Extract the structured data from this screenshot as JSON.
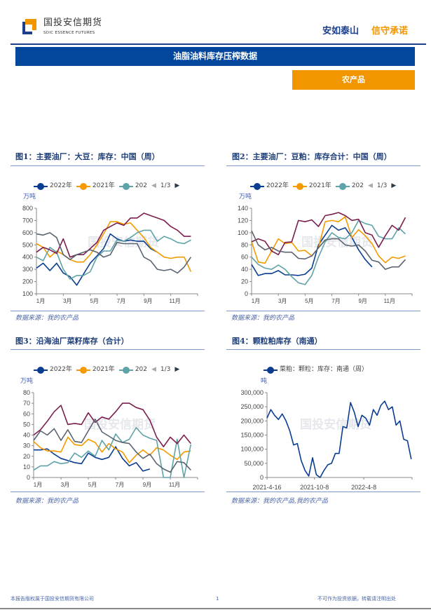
{
  "header": {
    "logo_cn": "国投安信期货",
    "logo_en": "SDIC ESSENCE FUTURES",
    "slogan_a": "安如泰山",
    "slogan_b": "信守承诺"
  },
  "section_title": "油脂油料库存压榨数据",
  "category": "农产品",
  "colors": {
    "navy": "#03479c",
    "orange": "#f29600",
    "s2022": "#0a3d91",
    "s2021": "#f59a00",
    "s2020": "#5fa3a8",
    "s4": "#7a1f4e",
    "s5": "#5a6470"
  },
  "watermark": "国投安信期货",
  "footer": {
    "left": "本报告版权属于国投安信期货有限公司",
    "page": "1",
    "right": "不可作为投资依据，转载请注明出处"
  },
  "charts": [
    {
      "title": "图1：主要油厂：大豆：库存：中国（周）",
      "unit": "万吨",
      "source": "数据来源：我的农产品",
      "legend": [
        "2022年",
        "2021年",
        "202"
      ],
      "pager": "1/3"
    },
    {
      "title": "图2：主要油厂：豆粕：库存合计：中国（周）",
      "unit": "万吨",
      "source": "数据来源：我的农产品",
      "legend": [
        "2022年",
        "2021年",
        "202"
      ],
      "pager": "1/3"
    },
    {
      "title": "图3：沿海油厂菜籽库存（合计）",
      "unit": "万吨",
      "source": "数据来源：我的农产品",
      "legend": [
        "2022年",
        "2021年",
        "202"
      ],
      "pager": "1/3"
    },
    {
      "title": "图4：颗粒粕库存（南通）",
      "unit": "吨",
      "source": "数据来源：我的农产品,我的农产品",
      "legend": [
        "菜粕：颗粒：库存：南通（周）"
      ]
    }
  ],
  "chart_data": [
    {
      "type": "line",
      "ylim": [
        100,
        800
      ],
      "yticks": [
        "100",
        "200",
        "300",
        "400",
        "500",
        "600",
        "700",
        "800"
      ],
      "xticks": [
        "1月",
        "3月",
        "5月",
        "7月",
        "9月",
        "11月"
      ],
      "x_unit": "month",
      "x_start": 1,
      "x_step": 0.5,
      "series": [
        {
          "name": "2022年",
          "color": "#0a3d91",
          "values": [
            310,
            350,
            290,
            350,
            270,
            240,
            170,
            260,
            350,
            410,
            470,
            590,
            550,
            530,
            540,
            530,
            530,
            470,
            440
          ]
        },
        {
          "name": "2021年",
          "color": "#f59a00",
          "values": [
            510,
            480,
            400,
            450,
            420,
            380,
            360,
            360,
            420,
            500,
            590,
            690,
            690,
            670,
            680,
            620,
            560,
            480,
            440,
            400,
            390,
            400,
            400,
            280
          ]
        },
        {
          "name": "202",
          "color": "#5fa3a8",
          "values": [
            400,
            370,
            480,
            440,
            300,
            220,
            250,
            250,
            280,
            400,
            450,
            450,
            540,
            530,
            560,
            600,
            620,
            620,
            530,
            570,
            550,
            520,
            510,
            540
          ]
        },
        {
          "color": "#7a1f4e",
          "values": [
            440,
            480,
            460,
            430,
            550,
            400,
            420,
            420,
            470,
            520,
            620,
            650,
            680,
            660,
            720,
            720,
            760,
            740,
            720,
            700,
            650,
            620,
            570,
            570
          ]
        },
        {
          "color": "#5a6470",
          "values": [
            590,
            580,
            600,
            560,
            420,
            380,
            420,
            440,
            460,
            440,
            400,
            420,
            520,
            510,
            510,
            510,
            400,
            370,
            300,
            290,
            300,
            270,
            320,
            400
          ]
        }
      ]
    },
    {
      "type": "line",
      "ylim": [
        0,
        140
      ],
      "yticks": [
        "0",
        "20",
        "40",
        "60",
        "80",
        "100",
        "120",
        "140"
      ],
      "xticks": [
        "1月",
        "3月",
        "5月",
        "7月",
        "9月",
        "11月"
      ],
      "x_unit": "month",
      "x_start": 1,
      "x_step": 0.5,
      "series": [
        {
          "name": "2022年",
          "color": "#0a3d91",
          "values": [
            48,
            30,
            33,
            33,
            38,
            31,
            31,
            30,
            32,
            42,
            80,
            96,
            112,
            104,
            108,
            92,
            72,
            56,
            44
          ]
        },
        {
          "name": "2021年",
          "color": "#f59a00",
          "values": [
            85,
            52,
            50,
            70,
            90,
            82,
            84,
            70,
            71,
            62,
            75,
            118,
            120,
            118,
            126,
            92,
            105,
            95,
            82,
            62,
            51,
            60,
            58,
            62
          ]
        },
        {
          "name": "202",
          "color": "#5fa3a8",
          "values": [
            60,
            48,
            42,
            40,
            47,
            40,
            28,
            18,
            15,
            30,
            60,
            85,
            100,
            92,
            90,
            100,
            120,
            115,
            112,
            94,
            90,
            90,
            108,
            98
          ]
        },
        {
          "color": "#7a1f4e",
          "values": [
            85,
            90,
            86,
            70,
            64,
            84,
            85,
            120,
            118,
            121,
            110,
            128,
            130,
            133,
            128,
            120,
            122,
            100,
            96,
            76,
            95,
            112,
            104,
            125
          ]
        },
        {
          "color": "#5a6470",
          "values": [
            103,
            80,
            72,
            76,
            70,
            68,
            68,
            58,
            57,
            62,
            75,
            88,
            90,
            90,
            80,
            78,
            80,
            70,
            55,
            52,
            40,
            44,
            44,
            56
          ]
        }
      ]
    },
    {
      "type": "line",
      "ylim": [
        0,
        80
      ],
      "yticks": [
        "0",
        "10",
        "20",
        "30",
        "40",
        "50",
        "60",
        "70",
        "80"
      ],
      "xticks": [
        "1月",
        "3月",
        "5月",
        "7月",
        "9月",
        "11月"
      ],
      "x_unit": "month",
      "x_start": 1,
      "x_step": 0.5,
      "series": [
        {
          "name": "2022年",
          "color": "#0a3d91",
          "values": [
            26,
            26,
            27,
            22,
            18,
            16,
            14,
            13,
            23,
            19,
            17,
            19,
            29,
            18,
            11,
            14,
            6,
            8
          ]
        },
        {
          "name": "2021年",
          "color": "#f59a00",
          "values": [
            34,
            28,
            25,
            25,
            24,
            38,
            31,
            30,
            36,
            33,
            24,
            32,
            27,
            24,
            14,
            21,
            26,
            21,
            28,
            26,
            21,
            17,
            24,
            25
          ]
        },
        {
          "name": "202",
          "color": "#5fa3a8",
          "values": [
            7,
            11,
            11,
            15,
            13,
            14,
            23,
            19,
            25,
            20,
            35,
            26,
            41,
            33,
            36,
            47,
            40,
            37,
            35,
            0,
            0,
            36,
            0,
            31
          ]
        },
        {
          "color": "#7a1f4e",
          "values": [
            40,
            45,
            53,
            62,
            68,
            50,
            51,
            50,
            61,
            52,
            57,
            55,
            62,
            70,
            70,
            66,
            64,
            54,
            38,
            29,
            38,
            32,
            40,
            32
          ]
        },
        {
          "color": "#5a6470",
          "values": [
            35,
            44,
            40,
            46,
            35,
            45,
            34,
            33,
            44,
            55,
            43,
            39,
            35,
            33,
            32,
            24,
            18,
            22,
            13,
            8,
            5,
            15,
            14,
            7
          ]
        }
      ]
    },
    {
      "type": "line",
      "ylim": [
        0,
        300000
      ],
      "yticks": [
        "0",
        "50,000",
        "100,000",
        "150,000",
        "200,000",
        "250,000",
        "300,000"
      ],
      "xticks": [
        "2021-4-16",
        "2021-10-8",
        "2022-4-8"
      ],
      "x": [
        "2021-04-16",
        "2021-04-30",
        "2021-05-14",
        "2021-05-28",
        "2021-06-11",
        "2021-06-25",
        "2021-07-09",
        "2021-07-23",
        "2021-08-06",
        "2021-08-20",
        "2021-09-03",
        "2021-09-17",
        "2021-10-01",
        "2021-10-15",
        "2021-10-29",
        "2021-11-12",
        "2021-11-26",
        "2021-12-10",
        "2021-12-24",
        "2022-01-07",
        "2022-01-21",
        "2022-02-04",
        "2022-02-18",
        "2022-03-04",
        "2022-03-18",
        "2022-04-01",
        "2022-04-15",
        "2022-04-29",
        "2022-05-13",
        "2022-05-27",
        "2022-06-10",
        "2022-06-24",
        "2022-07-08",
        "2022-07-22",
        "2022-08-05",
        "2022-08-19",
        "2022-09-02",
        "2022-09-16",
        "2022-09-30"
      ],
      "series": [
        {
          "name": "菜粕：颗粒：库存：南通（周）",
          "color": "#0a3d91",
          "values": [
            210000,
            240000,
            220000,
            205000,
            225000,
            200000,
            165000,
            115000,
            120000,
            60000,
            25000,
            5000,
            70000,
            10000,
            0,
            25000,
            45000,
            50000,
            85000,
            85000,
            180000,
            175000,
            265000,
            230000,
            180000,
            220000,
            210000,
            185000,
            240000,
            220000,
            255000,
            270000,
            240000,
            250000,
            185000,
            200000,
            135000,
            130000,
            65000
          ]
        }
      ]
    }
  ]
}
